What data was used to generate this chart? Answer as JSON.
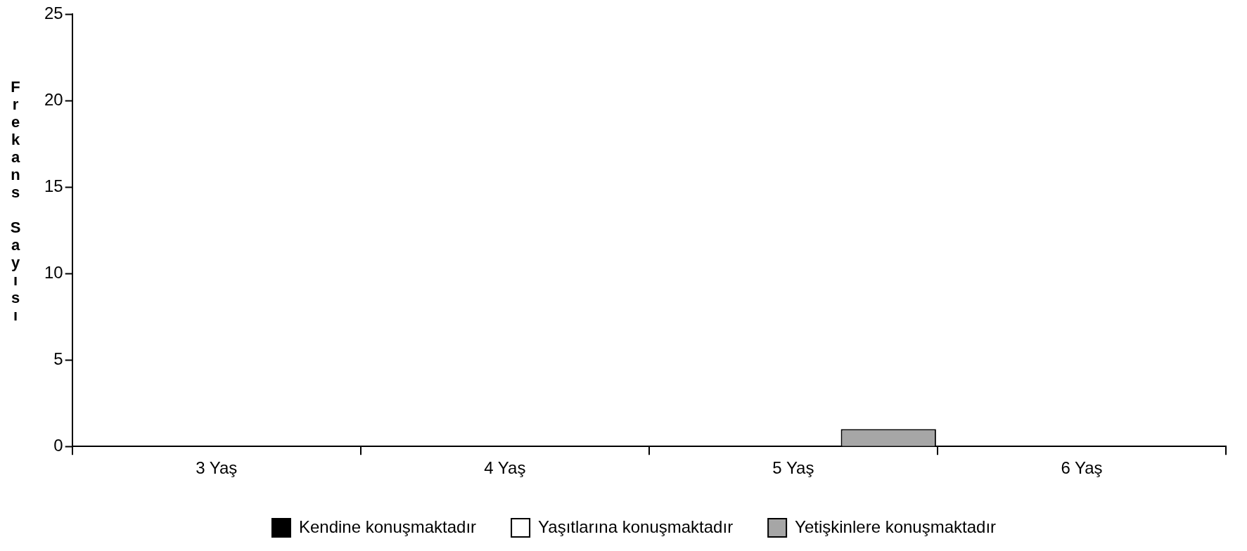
{
  "chart_data": {
    "type": "bar",
    "ylabel": "Frekans Sayısı",
    "categories": [
      "3 Yaş",
      "4 Yaş",
      "5 Yaş",
      "6 Yaş"
    ],
    "series": [
      {
        "name": "Kendine konuşmaktadır",
        "color": "#000000",
        "values": [
          0,
          0,
          0,
          0
        ]
      },
      {
        "name": "Yaşıtlarına konuşmaktadır",
        "color": "#ffffff",
        "values": [
          0,
          0,
          0,
          0
        ]
      },
      {
        "name": "Yetişkinlere konuşmaktadır",
        "color": "#a6a6a6",
        "values": [
          0,
          0,
          1,
          0
        ]
      }
    ],
    "ylim": [
      0,
      25
    ],
    "yticks": [
      0,
      5,
      10,
      15,
      20,
      25
    ],
    "grid": false,
    "legend": "bottom"
  }
}
